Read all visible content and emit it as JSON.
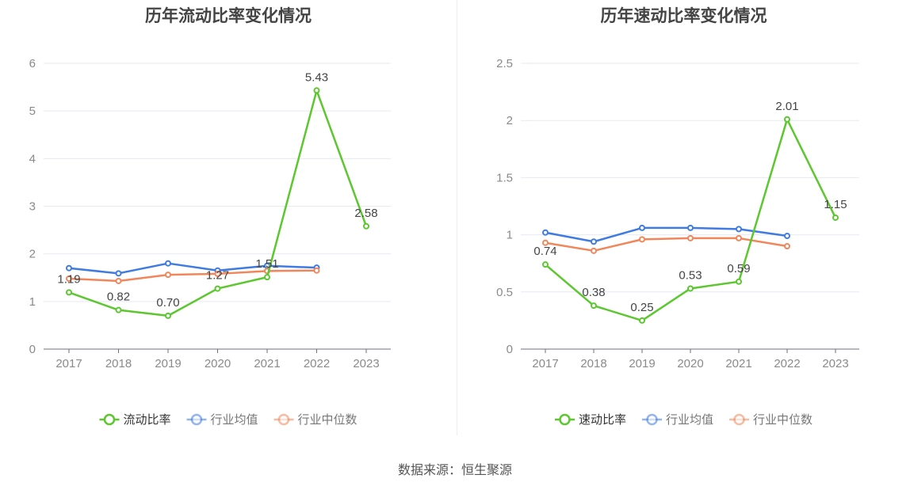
{
  "chart_data": [
    {
      "type": "line",
      "title": "历年流动比率变化情况",
      "categories": [
        "2017",
        "2018",
        "2019",
        "2020",
        "2021",
        "2022",
        "2023"
      ],
      "yticks": [
        "0",
        "1",
        "2",
        "3",
        "4",
        "5",
        "6"
      ],
      "ylim": [
        0,
        6
      ],
      "series": [
        {
          "name": "流动比率",
          "color": "#5cc72f",
          "values": [
            1.19,
            0.82,
            0.7,
            1.27,
            1.51,
            5.43,
            2.58
          ],
          "labels": [
            "1.19",
            "0.82",
            "0.70",
            "1.27",
            "1.51",
            "5.43",
            "2.58"
          ]
        },
        {
          "name": "行业均值",
          "color": "#3f7be0",
          "values": [
            1.7,
            1.59,
            1.8,
            1.65,
            1.75,
            1.71,
            null
          ]
        },
        {
          "name": "行业中位数",
          "color": "#f2865b",
          "values": [
            1.48,
            1.43,
            1.56,
            1.58,
            1.64,
            1.65,
            null
          ]
        }
      ],
      "legend": [
        "流动比率",
        "行业均值",
        "行业中位数"
      ]
    },
    {
      "type": "line",
      "title": "历年速动比率变化情况",
      "categories": [
        "2017",
        "2018",
        "2019",
        "2020",
        "2021",
        "2022",
        "2023"
      ],
      "yticks": [
        "0",
        "0.5",
        "1",
        "1.5",
        "2",
        "2.5"
      ],
      "ylim": [
        0,
        2.5
      ],
      "series": [
        {
          "name": "速动比率",
          "color": "#5cc72f",
          "values": [
            0.74,
            0.38,
            0.25,
            0.53,
            0.59,
            2.01,
            1.15
          ],
          "labels": [
            "0.74",
            "0.38",
            "0.25",
            "0.53",
            "0.59",
            "2.01",
            "1.15"
          ]
        },
        {
          "name": "行业均值",
          "color": "#3f7be0",
          "values": [
            1.02,
            0.94,
            1.06,
            1.06,
            1.05,
            0.99,
            null
          ]
        },
        {
          "name": "行业中位数",
          "color": "#f2865b",
          "values": [
            0.93,
            0.86,
            0.96,
            0.97,
            0.97,
            0.9,
            null
          ]
        }
      ],
      "legend": [
        "速动比率",
        "行业均值",
        "行业中位数"
      ]
    }
  ],
  "source": "数据来源：恒生聚源"
}
